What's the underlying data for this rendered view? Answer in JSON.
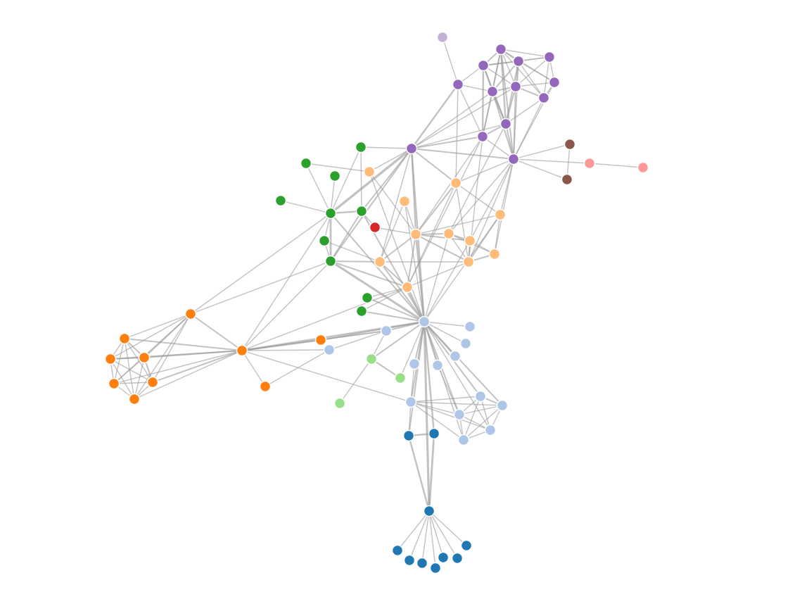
{
  "group_colors": [
    "#c5b0d5",
    "#9467bd",
    "#8c564b",
    "#ff9896",
    "#2ca02c",
    "#ffbb78",
    "#d62728",
    "#ff7f0e",
    "#aec7e8",
    "#98df8a",
    "#1f77b4"
  ],
  "nodes": [
    0,
    1,
    1,
    1,
    1,
    1,
    1,
    1,
    1,
    1,
    1,
    1,
    1,
    1,
    2,
    2,
    3,
    3,
    4,
    4,
    4,
    4,
    4,
    4,
    4,
    4,
    4,
    4,
    5,
    5,
    5,
    5,
    5,
    5,
    5,
    5,
    5,
    5,
    5,
    6,
    7,
    7,
    7,
    7,
    7,
    7,
    7,
    7,
    7,
    7,
    8,
    8,
    8,
    8,
    8,
    8,
    8,
    8,
    8,
    8,
    8,
    8,
    8,
    8,
    9,
    9,
    9,
    10,
    10,
    10,
    10,
    10,
    10,
    10,
    10,
    10,
    10
  ],
  "links": [
    [
      0,
      5,
      1
    ],
    [
      1,
      2,
      1
    ],
    [
      1,
      3,
      2
    ],
    [
      1,
      4,
      2
    ],
    [
      1,
      6,
      2
    ],
    [
      1,
      7,
      1
    ],
    [
      1,
      8,
      1
    ],
    [
      1,
      9,
      1
    ],
    [
      1,
      10,
      3
    ],
    [
      1,
      11,
      1
    ],
    [
      1,
      12,
      2
    ],
    [
      2,
      4,
      1
    ],
    [
      2,
      7,
      1
    ],
    [
      2,
      8,
      1
    ],
    [
      2,
      9,
      1
    ],
    [
      2,
      3,
      1
    ],
    [
      3,
      4,
      2
    ],
    [
      3,
      5,
      1
    ],
    [
      3,
      6,
      2
    ],
    [
      3,
      7,
      1
    ],
    [
      3,
      10,
      2
    ],
    [
      3,
      11,
      3
    ],
    [
      4,
      6,
      2
    ],
    [
      4,
      7,
      2
    ],
    [
      4,
      8,
      1
    ],
    [
      4,
      9,
      1
    ],
    [
      4,
      10,
      2
    ],
    [
      4,
      12,
      1
    ],
    [
      5,
      6,
      1
    ],
    [
      5,
      13,
      3
    ],
    [
      5,
      11,
      1
    ],
    [
      6,
      7,
      2
    ],
    [
      6,
      10,
      4
    ],
    [
      6,
      11,
      2
    ],
    [
      6,
      12,
      2
    ],
    [
      6,
      13,
      1
    ],
    [
      7,
      8,
      1
    ],
    [
      7,
      9,
      2
    ],
    [
      7,
      10,
      2
    ],
    [
      7,
      12,
      2
    ],
    [
      7,
      13,
      1
    ],
    [
      8,
      9,
      1
    ],
    [
      8,
      12,
      1
    ],
    [
      9,
      10,
      1
    ],
    [
      9,
      12,
      1
    ],
    [
      10,
      11,
      2
    ],
    [
      10,
      12,
      2
    ],
    [
      10,
      13,
      1
    ],
    [
      11,
      13,
      2
    ],
    [
      11,
      12,
      1
    ],
    [
      12,
      13,
      2
    ],
    [
      13,
      29,
      2
    ],
    [
      13,
      22,
      6
    ],
    [
      13,
      25,
      2
    ],
    [
      13,
      50,
      3
    ],
    [
      13,
      37,
      1
    ],
    [
      13,
      18,
      1
    ],
    [
      13,
      32,
      2
    ],
    [
      13,
      28,
      1
    ],
    [
      5,
      29,
      1
    ],
    [
      11,
      32,
      1
    ],
    [
      11,
      36,
      1
    ],
    [
      12,
      31,
      1
    ],
    [
      12,
      34,
      1
    ],
    [
      12,
      36,
      1
    ],
    [
      12,
      35,
      1
    ],
    [
      12,
      29,
      1
    ],
    [
      12,
      33,
      1
    ],
    [
      10,
      33,
      1
    ],
    [
      11,
      38,
      1
    ],
    [
      12,
      14,
      1
    ],
    [
      12,
      15,
      1
    ],
    [
      12,
      16,
      1
    ],
    [
      14,
      15,
      1
    ],
    [
      16,
      17,
      1
    ],
    [
      18,
      23,
      1
    ],
    [
      18,
      22,
      1
    ],
    [
      19,
      22,
      1
    ],
    [
      19,
      28,
      1
    ],
    [
      20,
      22,
      1
    ],
    [
      21,
      22,
      1
    ],
    [
      22,
      23,
      3
    ],
    [
      22,
      25,
      4
    ],
    [
      22,
      24,
      1
    ],
    [
      22,
      47,
      1
    ],
    [
      22,
      50,
      2
    ],
    [
      23,
      25,
      2
    ],
    [
      23,
      50,
      2
    ],
    [
      23,
      39,
      1
    ],
    [
      23,
      13,
      2
    ],
    [
      24,
      25,
      1
    ],
    [
      25,
      50,
      5
    ],
    [
      25,
      37,
      2
    ],
    [
      25,
      47,
      1
    ],
    [
      25,
      38,
      2
    ],
    [
      26,
      50,
      2
    ],
    [
      26,
      38,
      1
    ],
    [
      27,
      50,
      2
    ],
    [
      27,
      38,
      1
    ],
    [
      24,
      37,
      1
    ],
    [
      28,
      32,
      1
    ],
    [
      29,
      31,
      1
    ],
    [
      29,
      32,
      2
    ],
    [
      29,
      38,
      1
    ],
    [
      29,
      36,
      1
    ],
    [
      30,
      32,
      1
    ],
    [
      30,
      50,
      1
    ],
    [
      31,
      32,
      1
    ],
    [
      31,
      36,
      2
    ],
    [
      31,
      50,
      1
    ],
    [
      31,
      35,
      1
    ],
    [
      32,
      33,
      2
    ],
    [
      32,
      34,
      2
    ],
    [
      32,
      36,
      2
    ],
    [
      32,
      37,
      2
    ],
    [
      32,
      38,
      2
    ],
    [
      32,
      50,
      3
    ],
    [
      33,
      34,
      2
    ],
    [
      33,
      36,
      1
    ],
    [
      33,
      35,
      1
    ],
    [
      34,
      36,
      2
    ],
    [
      34,
      35,
      1
    ],
    [
      34,
      50,
      1
    ],
    [
      35,
      36,
      2
    ],
    [
      36,
      38,
      1
    ],
    [
      36,
      37,
      1
    ],
    [
      37,
      38,
      2
    ],
    [
      37,
      50,
      2
    ],
    [
      38,
      50,
      4
    ],
    [
      39,
      32,
      1
    ],
    [
      33,
      50,
      1
    ],
    [
      30,
      37,
      1
    ],
    [
      28,
      50,
      1
    ],
    [
      40,
      41,
      1
    ],
    [
      40,
      42,
      1
    ],
    [
      40,
      43,
      2
    ],
    [
      40,
      44,
      1
    ],
    [
      40,
      45,
      1
    ],
    [
      40,
      46,
      1
    ],
    [
      40,
      47,
      2
    ],
    [
      40,
      22,
      1
    ],
    [
      40,
      25,
      1
    ],
    [
      41,
      42,
      1
    ],
    [
      41,
      43,
      2
    ],
    [
      41,
      44,
      1
    ],
    [
      41,
      45,
      1
    ],
    [
      41,
      46,
      1
    ],
    [
      41,
      47,
      2
    ],
    [
      42,
      43,
      2
    ],
    [
      42,
      44,
      1
    ],
    [
      42,
      45,
      1
    ],
    [
      42,
      46,
      1
    ],
    [
      42,
      47,
      2
    ],
    [
      43,
      44,
      1
    ],
    [
      43,
      45,
      2
    ],
    [
      43,
      46,
      1
    ],
    [
      43,
      47,
      2
    ],
    [
      44,
      45,
      1
    ],
    [
      44,
      46,
      1
    ],
    [
      44,
      47,
      1
    ],
    [
      45,
      46,
      1
    ],
    [
      45,
      47,
      2
    ],
    [
      46,
      47,
      1
    ],
    [
      47,
      48,
      3
    ],
    [
      47,
      49,
      1
    ],
    [
      47,
      50,
      3
    ],
    [
      47,
      53,
      1
    ],
    [
      47,
      54,
      1
    ],
    [
      47,
      38,
      1
    ],
    [
      48,
      50,
      2
    ],
    [
      48,
      53,
      1
    ],
    [
      49,
      54,
      1
    ],
    [
      47,
      61,
      1
    ],
    [
      50,
      51,
      1
    ],
    [
      50,
      52,
      1
    ],
    [
      50,
      53,
      2
    ],
    [
      50,
      55,
      2
    ],
    [
      50,
      56,
      2
    ],
    [
      50,
      57,
      2
    ],
    [
      50,
      58,
      2
    ],
    [
      50,
      59,
      2
    ],
    [
      50,
      60,
      2
    ],
    [
      50,
      61,
      2
    ],
    [
      50,
      62,
      1
    ],
    [
      50,
      63,
      1
    ],
    [
      50,
      64,
      2
    ],
    [
      50,
      65,
      1
    ],
    [
      50,
      67,
      2
    ],
    [
      50,
      68,
      3
    ],
    [
      50,
      69,
      5
    ],
    [
      53,
      54,
      1
    ],
    [
      53,
      64,
      1
    ],
    [
      56,
      61,
      1
    ],
    [
      57,
      60,
      1
    ],
    [
      58,
      59,
      2
    ],
    [
      58,
      60,
      1
    ],
    [
      58,
      61,
      1
    ],
    [
      58,
      62,
      1
    ],
    [
      58,
      63,
      1
    ],
    [
      59,
      60,
      1
    ],
    [
      59,
      61,
      1
    ],
    [
      59,
      62,
      1
    ],
    [
      59,
      63,
      1
    ],
    [
      60,
      61,
      1
    ],
    [
      60,
      62,
      1
    ],
    [
      60,
      63,
      1
    ],
    [
      61,
      62,
      1
    ],
    [
      61,
      63,
      1
    ],
    [
      62,
      63,
      1
    ],
    [
      61,
      67,
      1
    ],
    [
      64,
      65,
      2
    ],
    [
      64,
      66,
      1
    ],
    [
      67,
      68,
      3
    ],
    [
      67,
      69,
      3
    ],
    [
      68,
      69,
      4
    ],
    [
      69,
      70,
      1
    ],
    [
      69,
      71,
      1
    ],
    [
      69,
      72,
      1
    ],
    [
      69,
      73,
      1
    ],
    [
      69,
      74,
      1
    ],
    [
      69,
      75,
      1
    ],
    [
      69,
      76,
      1
    ]
  ]
}
